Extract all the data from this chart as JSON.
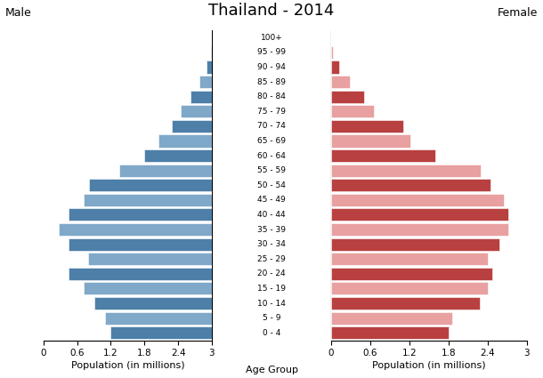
{
  "title": "Thailand - 2014",
  "age_groups": [
    "0 - 4",
    "5 - 9",
    "10 - 14",
    "15 - 19",
    "20 - 24",
    "25 - 29",
    "30 - 34",
    "35 - 39",
    "40 - 44",
    "45 - 49",
    "50 - 54",
    "55 - 59",
    "60 - 64",
    "65 - 69",
    "70 - 74",
    "75 - 79",
    "80 - 84",
    "85 - 89",
    "90 - 94",
    "95 - 99",
    "100+"
  ],
  "male": [
    1.8,
    1.9,
    2.1,
    2.28,
    2.55,
    2.2,
    2.55,
    2.72,
    2.55,
    2.28,
    2.18,
    1.65,
    1.2,
    0.95,
    0.72,
    0.55,
    0.38,
    0.22,
    0.1,
    0.02,
    0.005
  ],
  "female": [
    1.8,
    1.85,
    2.28,
    2.4,
    2.47,
    2.4,
    2.58,
    2.72,
    2.72,
    2.65,
    2.45,
    2.3,
    1.6,
    1.22,
    1.1,
    0.65,
    0.5,
    0.28,
    0.12,
    0.02,
    0.005
  ],
  "male_colors": [
    "#4d7fa8",
    "#7fa8c9",
    "#4d7fa8",
    "#7fa8c9",
    "#4d7fa8",
    "#7fa8c9",
    "#4d7fa8",
    "#7fa8c9",
    "#4d7fa8",
    "#7fa8c9",
    "#4d7fa8",
    "#7fa8c9",
    "#4d7fa8",
    "#7fa8c9",
    "#4d7fa8",
    "#7fa8c9",
    "#4d7fa8",
    "#7fa8c9",
    "#4d7fa8",
    "#7fa8c9",
    "#4d7fa8"
  ],
  "female_colors": [
    "#b94040",
    "#e8a0a0",
    "#b94040",
    "#e8a0a0",
    "#b94040",
    "#e8a0a0",
    "#b94040",
    "#e8a0a0",
    "#b94040",
    "#e8a0a0",
    "#b94040",
    "#e8a0a0",
    "#b94040",
    "#e8a0a0",
    "#b94040",
    "#e8a0a0",
    "#b94040",
    "#e8a0a0",
    "#b94040",
    "#e8a0a0",
    "#b94040"
  ],
  "xlim": 3.0,
  "xticks": [
    0,
    0.6,
    1.2,
    1.8,
    2.4,
    3.0
  ],
  "xticklabels": [
    "0",
    "0.6",
    "1.2",
    "1.8",
    "2.4",
    "3"
  ],
  "male_xticks": [
    3.0,
    2.4,
    1.8,
    1.2,
    0.6,
    0
  ],
  "male_xticklabels": [
    "3",
    "2.4",
    "1.8",
    "1.2",
    "0.6",
    "0"
  ],
  "xlabel_left": "Population (in millions)",
  "xlabel_center": "Age Group",
  "xlabel_right": "Population (in millions)",
  "label_male": "Male",
  "label_female": "Female",
  "background_color": "#ffffff",
  "bar_height": 0.85
}
